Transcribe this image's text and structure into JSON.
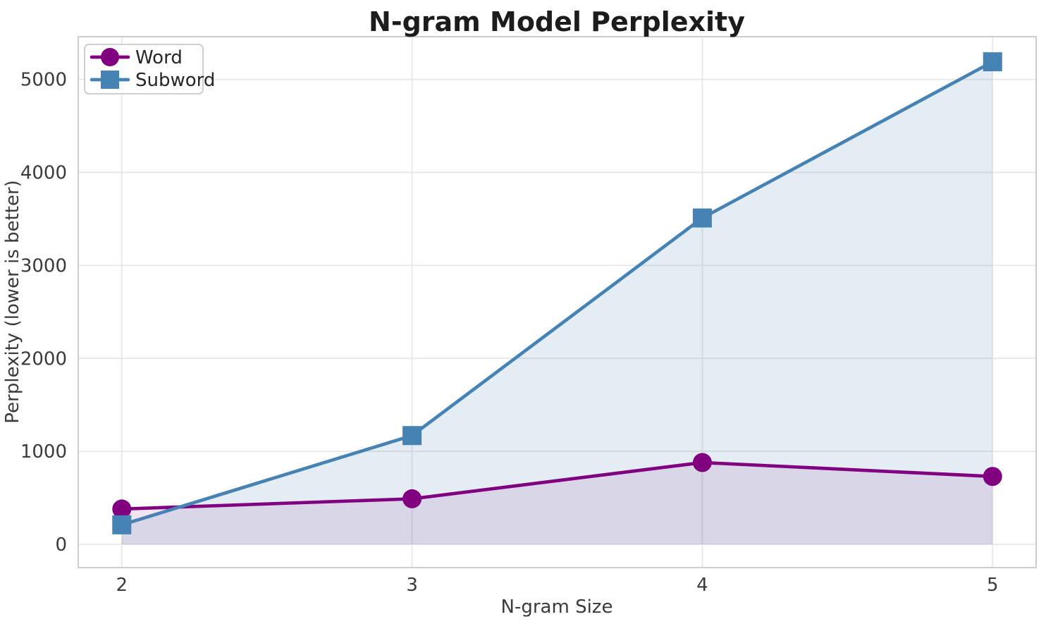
{
  "chart_data": {
    "type": "line",
    "title": "N-gram Model Perplexity",
    "xlabel": "N-gram Size",
    "ylabel": "Perplexity (lower is better)",
    "x": [
      2,
      3,
      4,
      5
    ],
    "series": [
      {
        "name": "Word",
        "values": [
          380,
          490,
          880,
          730
        ],
        "color": "#800080",
        "marker": "circle",
        "fill_alpha": 0.1
      },
      {
        "name": "Subword",
        "values": [
          210,
          1170,
          3510,
          5190
        ],
        "color": "#4682B4",
        "marker": "square",
        "fill_alpha": 0.14
      }
    ],
    "xticks": [
      2,
      3,
      4,
      5
    ],
    "yticks": [
      0,
      1000,
      2000,
      3000,
      4000,
      5000
    ],
    "xlim": [
      1.85,
      5.15
    ],
    "ylim": [
      -250,
      5460
    ],
    "grid": true,
    "fill_to_zero": true,
    "legend_position": "upper left",
    "legend": [
      "Word",
      "Subword"
    ]
  },
  "style": {
    "grid_color": "#e7e7e7",
    "spine_color": "#cccccc",
    "title_color": "#1c1c1c",
    "tick_color": "#3a3a3a",
    "legend_border_color": "#c9c9c9",
    "background": "#ffffff"
  }
}
